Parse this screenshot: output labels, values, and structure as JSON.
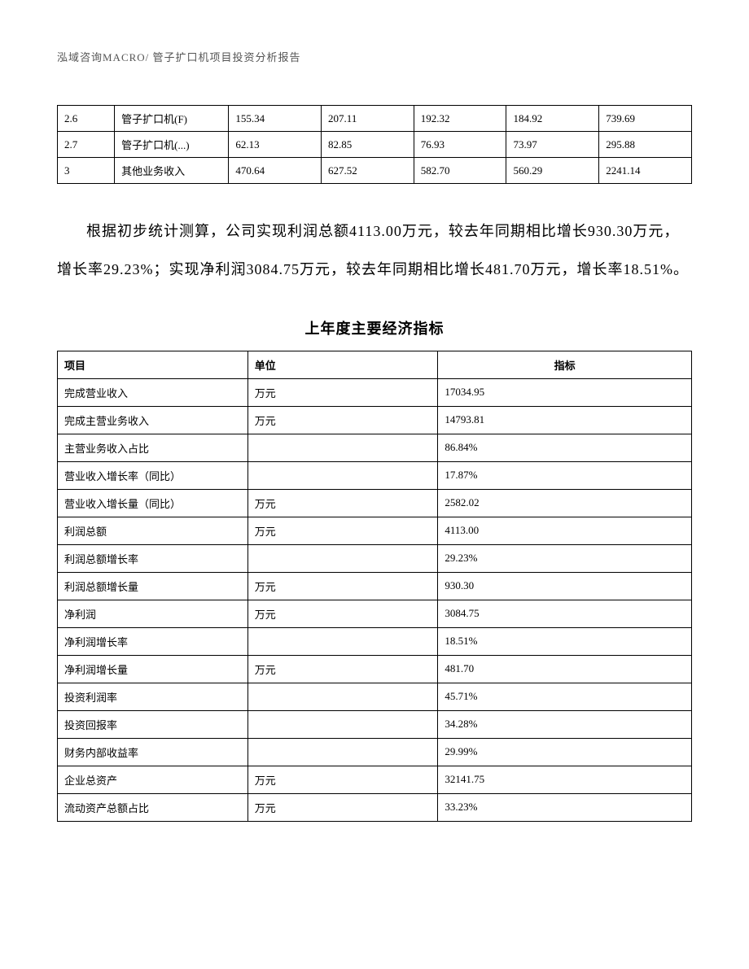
{
  "header": {
    "text": "泓域咨询MACRO/    管子扩口机项目投资分析报告"
  },
  "table1": {
    "type": "table",
    "border_color": "#000000",
    "background_color": "#ffffff",
    "text_color": "#000000",
    "fontsize": 13,
    "col_widths": [
      "9%",
      "18%",
      "14.6%",
      "14.6%",
      "14.6%",
      "14.6%",
      "14.6%"
    ],
    "rows": [
      [
        "2.6",
        "管子扩口机(F)",
        "155.34",
        "207.11",
        "192.32",
        "184.92",
        "739.69"
      ],
      [
        "2.7",
        "管子扩口机(...)",
        "62.13",
        "82.85",
        "76.93",
        "73.97",
        "295.88"
      ],
      [
        "3",
        "其他业务收入",
        "470.64",
        "627.52",
        "582.70",
        "560.29",
        "2241.14"
      ]
    ]
  },
  "paragraph": {
    "text": "根据初步统计测算，公司实现利润总额4113.00万元，较去年同期相比增长930.30万元，增长率29.23%；实现净利润3084.75万元，较去年同期相比增长481.70万元，增长率18.51%。",
    "fontsize": 18,
    "line_height": 2.6,
    "text_indent_em": 2
  },
  "section_title": {
    "text": "上年度主要经济指标",
    "fontsize": 18,
    "font_weight": "bold"
  },
  "table2": {
    "type": "table",
    "border_color": "#000000",
    "background_color": "#ffffff",
    "text_color": "#000000",
    "fontsize": 13,
    "col_widths": [
      "30%",
      "30%",
      "40%"
    ],
    "columns": [
      "项目",
      "单位",
      "指标"
    ],
    "rows": [
      [
        "完成营业收入",
        "万元",
        "17034.95"
      ],
      [
        "完成主营业务收入",
        "万元",
        "14793.81"
      ],
      [
        "主营业务收入占比",
        "",
        "86.84%"
      ],
      [
        "营业收入增长率（同比）",
        "",
        "17.87%"
      ],
      [
        "营业收入增长量（同比）",
        "万元",
        "2582.02"
      ],
      [
        "利润总额",
        "万元",
        "4113.00"
      ],
      [
        "利润总额增长率",
        "",
        "29.23%"
      ],
      [
        "利润总额增长量",
        "万元",
        "930.30"
      ],
      [
        "净利润",
        "万元",
        "3084.75"
      ],
      [
        "净利润增长率",
        "",
        "18.51%"
      ],
      [
        "净利润增长量",
        "万元",
        "481.70"
      ],
      [
        "投资利润率",
        "",
        "45.71%"
      ],
      [
        "投资回报率",
        "",
        "34.28%"
      ],
      [
        "财务内部收益率",
        "",
        "29.99%"
      ],
      [
        "企业总资产",
        "万元",
        "32141.75"
      ],
      [
        "流动资产总额占比",
        "万元",
        "33.23%"
      ]
    ]
  }
}
